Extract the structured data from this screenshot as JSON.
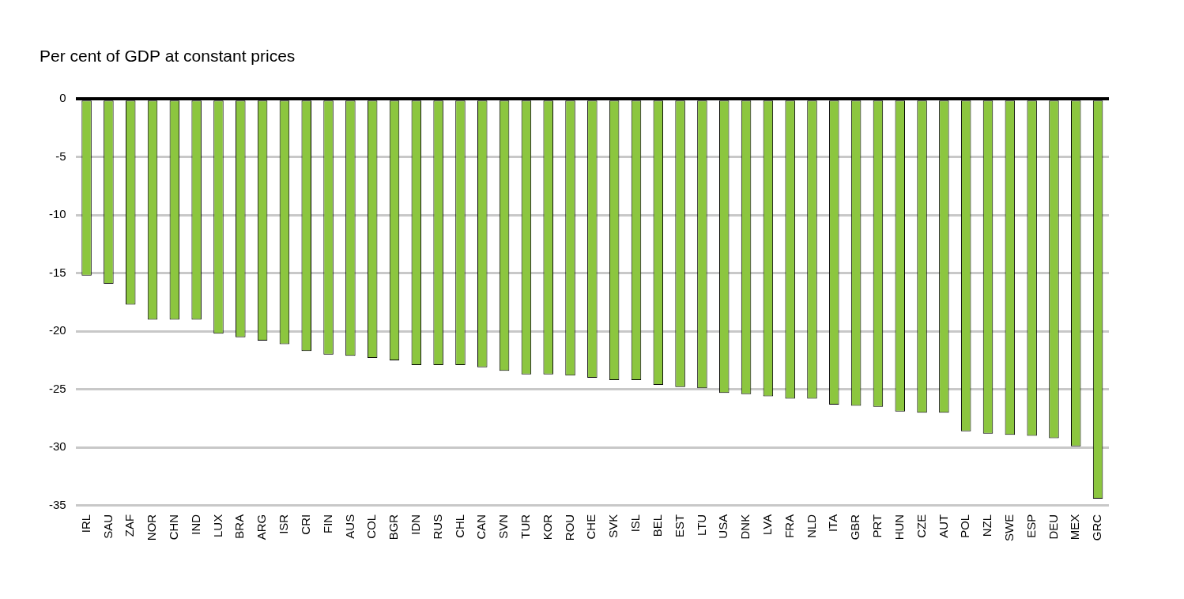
{
  "chart_data": {
    "type": "bar",
    "title": "Per cent of GDP at constant prices",
    "categories": [
      "IRL",
      "SAU",
      "ZAF",
      "NOR",
      "CHN",
      "IND",
      "LUX",
      "BRA",
      "ARG",
      "ISR",
      "CRI",
      "FIN",
      "AUS",
      "COL",
      "BGR",
      "IDN",
      "RUS",
      "CHL",
      "CAN",
      "SVN",
      "TUR",
      "KOR",
      "ROU",
      "CHE",
      "SVK",
      "ISL",
      "BEL",
      "EST",
      "LTU",
      "USA",
      "DNK",
      "LVA",
      "FRA",
      "NLD",
      "ITA",
      "GBR",
      "PRT",
      "HUN",
      "CZE",
      "AUT",
      "POL",
      "NZL",
      "SWE",
      "ESP",
      "DEU",
      "MEX",
      "GRC"
    ],
    "values": [
      -15.2,
      -15.9,
      -17.7,
      -19.0,
      -19.0,
      -19.0,
      -20.2,
      -20.5,
      -20.8,
      -21.1,
      -21.7,
      -22.0,
      -22.1,
      -22.3,
      -22.5,
      -22.9,
      -22.9,
      -22.9,
      -23.1,
      -23.4,
      -23.7,
      -23.7,
      -23.8,
      -24.0,
      -24.2,
      -24.2,
      -24.6,
      -24.8,
      -24.9,
      -25.3,
      -25.4,
      -25.6,
      -25.8,
      -25.8,
      -26.3,
      -26.4,
      -26.5,
      -26.9,
      -27.0,
      -27.0,
      -28.6,
      -28.8,
      -28.9,
      -29.0,
      -29.2,
      -29.9,
      -34.4
    ],
    "color": "#8cc63f",
    "ylim": [
      -35,
      0
    ],
    "yticks": [
      -35,
      -30,
      -25,
      -20,
      -15,
      -10,
      -5,
      0
    ],
    "grid": true
  }
}
